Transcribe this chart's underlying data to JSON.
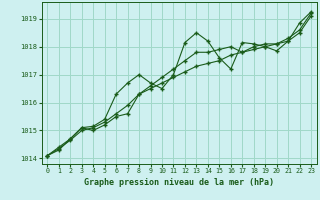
{
  "title": "Graphe pression niveau de la mer (hPa)",
  "xlim": [
    -0.5,
    23.5
  ],
  "ylim": [
    1013.8,
    1019.6
  ],
  "yticks": [
    1014,
    1015,
    1016,
    1017,
    1018,
    1019
  ],
  "xticks": [
    0,
    1,
    2,
    3,
    4,
    5,
    6,
    7,
    8,
    9,
    10,
    11,
    12,
    13,
    14,
    15,
    16,
    17,
    18,
    19,
    20,
    21,
    22,
    23
  ],
  "background_color": "#cef0f0",
  "grid_color": "#a0d8c8",
  "line_color": "#1a5c1a",
  "series1_x": [
    0,
    1,
    2,
    3,
    4,
    5,
    6,
    7,
    8,
    9,
    10,
    11,
    12,
    13,
    14,
    15,
    16,
    17,
    18,
    19,
    20,
    21,
    22,
    23
  ],
  "series1_y": [
    1014.1,
    1014.4,
    1014.7,
    1015.1,
    1015.0,
    1015.2,
    1015.5,
    1015.6,
    1016.3,
    1016.6,
    1016.9,
    1017.2,
    1017.5,
    1017.8,
    1017.8,
    1017.9,
    1018.0,
    1017.8,
    1018.0,
    1018.1,
    1018.1,
    1018.3,
    1018.6,
    1019.2
  ],
  "series2_x": [
    0,
    1,
    2,
    3,
    4,
    5,
    6,
    7,
    8,
    9,
    10,
    11,
    12,
    13,
    14,
    15,
    16,
    17,
    18,
    19,
    20,
    21,
    22,
    23
  ],
  "series2_y": [
    1014.1,
    1014.35,
    1014.65,
    1015.0,
    1015.1,
    1015.3,
    1015.6,
    1015.9,
    1016.3,
    1016.5,
    1016.7,
    1016.9,
    1017.1,
    1017.3,
    1017.4,
    1017.5,
    1017.7,
    1017.8,
    1017.9,
    1018.0,
    1018.1,
    1018.2,
    1018.5,
    1019.1
  ],
  "series3_x": [
    0,
    1,
    2,
    3,
    4,
    5,
    6,
    7,
    8,
    9,
    10,
    11,
    12,
    13,
    14,
    15,
    16,
    17,
    18,
    19,
    20,
    21,
    22,
    23
  ],
  "series3_y": [
    1014.1,
    1014.3,
    1014.7,
    1015.1,
    1015.15,
    1015.4,
    1016.3,
    1016.7,
    1017.0,
    1016.7,
    1016.5,
    1017.0,
    1018.15,
    1018.5,
    1018.2,
    1017.6,
    1017.2,
    1018.15,
    1018.1,
    1018.0,
    1017.85,
    1018.2,
    1018.85,
    1019.25
  ]
}
